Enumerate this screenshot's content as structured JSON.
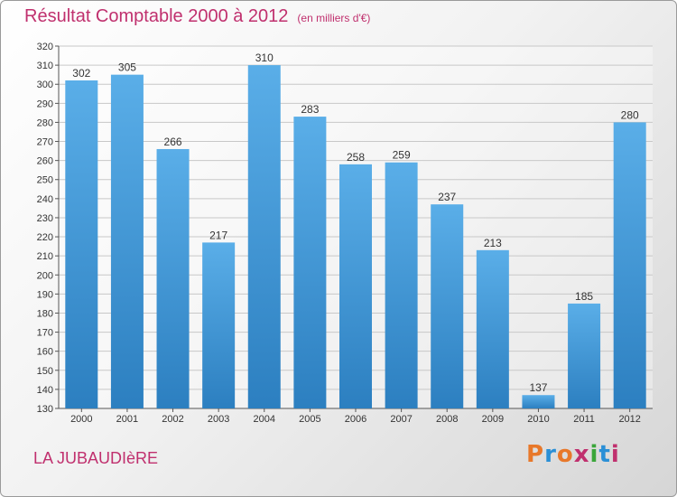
{
  "header": {
    "title": "Résultat Comptable 2000 à 2012",
    "subtitle": "(en milliers d'€)"
  },
  "footer": {
    "commune": "LA JUBAUDIèRE",
    "brand": "Proxiti",
    "brand_colors": [
      "#e8782a",
      "#2a8fd6",
      "#e8782a",
      "#c0306e",
      "#3aa63a",
      "#2a8fd6",
      "#c0306e"
    ]
  },
  "colors": {
    "title": "#c0306e",
    "bar_top": "#5aaee8",
    "bar_bottom": "#2c7fc0",
    "grid": "#c8c8c8",
    "axis_text": "#333333"
  },
  "chart_data": {
    "type": "bar",
    "title": "Résultat Comptable 2000 à 2012",
    "subtitle": "(en milliers d'€)",
    "xlabel": "",
    "ylabel": "",
    "categories": [
      "2000",
      "2001",
      "2002",
      "2003",
      "2004",
      "2005",
      "2006",
      "2007",
      "2008",
      "2009",
      "2010",
      "2011",
      "2012"
    ],
    "values": [
      302,
      305,
      266,
      217,
      310,
      283,
      258,
      259,
      237,
      213,
      137,
      185,
      280
    ],
    "ylim": [
      130,
      320
    ],
    "yticks": [
      130,
      140,
      150,
      160,
      170,
      180,
      190,
      200,
      210,
      220,
      230,
      240,
      250,
      260,
      270,
      280,
      290,
      300,
      310,
      320
    ],
    "grid": true,
    "legend": "none"
  }
}
